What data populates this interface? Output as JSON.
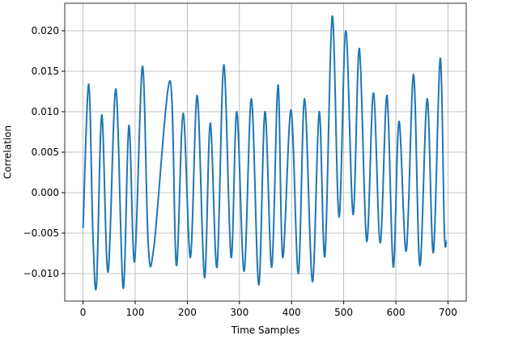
{
  "chart_data": {
    "type": "line",
    "xlabel": "Time Samples",
    "ylabel": "Correlation",
    "x": [
      0,
      11,
      19,
      26,
      36,
      48,
      63,
      77,
      88,
      99,
      114,
      125,
      136,
      167,
      179,
      192,
      206,
      219,
      233,
      244,
      257,
      270,
      284,
      295,
      309,
      323,
      337,
      349,
      362,
      374,
      383,
      399,
      413,
      425,
      440,
      453,
      464,
      478,
      491,
      504,
      518,
      530,
      544,
      557,
      570,
      583,
      595,
      606,
      620,
      634,
      646,
      660,
      672,
      685,
      693,
      697
    ],
    "series": [
      {
        "name": "Correlation",
        "color": "#1f77b4",
        "values": [
          -0.0044,
          0.0134,
          -0.0052,
          -0.0113,
          0.0096,
          -0.0098,
          0.0128,
          -0.0118,
          0.0083,
          -0.0085,
          0.0156,
          -0.0063,
          -0.0067,
          0.0138,
          -0.009,
          0.0098,
          -0.008,
          0.012,
          -0.0105,
          0.0086,
          -0.0092,
          0.0158,
          -0.008,
          0.01,
          -0.0097,
          0.0116,
          -0.0114,
          0.01,
          -0.0092,
          0.0133,
          -0.008,
          0.0102,
          -0.01,
          0.0116,
          -0.011,
          0.01,
          -0.0078,
          0.0218,
          -0.003,
          0.02,
          -0.0027,
          0.0178,
          -0.006,
          0.0123,
          -0.0062,
          0.012,
          -0.0092,
          0.0088,
          -0.0072,
          0.0146,
          -0.009,
          0.0116,
          -0.0074,
          0.0166,
          -0.0047,
          -0.006
        ]
      }
    ],
    "xlim": [
      -35,
      735
    ],
    "ylim": [
      -0.0134,
      0.0234
    ],
    "xticks": [
      0,
      100,
      200,
      300,
      400,
      500,
      600,
      700
    ],
    "yticks": [
      {
        "value": -0.01,
        "label": "−0.010"
      },
      {
        "value": -0.005,
        "label": "−0.005"
      },
      {
        "value": 0,
        "label": "0.000"
      },
      {
        "value": 0.005,
        "label": "0.005"
      },
      {
        "value": 0.01,
        "label": "0.010"
      },
      {
        "value": 0.015,
        "label": "0.015"
      },
      {
        "value": 0.02,
        "label": "0.020"
      }
    ],
    "grid": true
  }
}
